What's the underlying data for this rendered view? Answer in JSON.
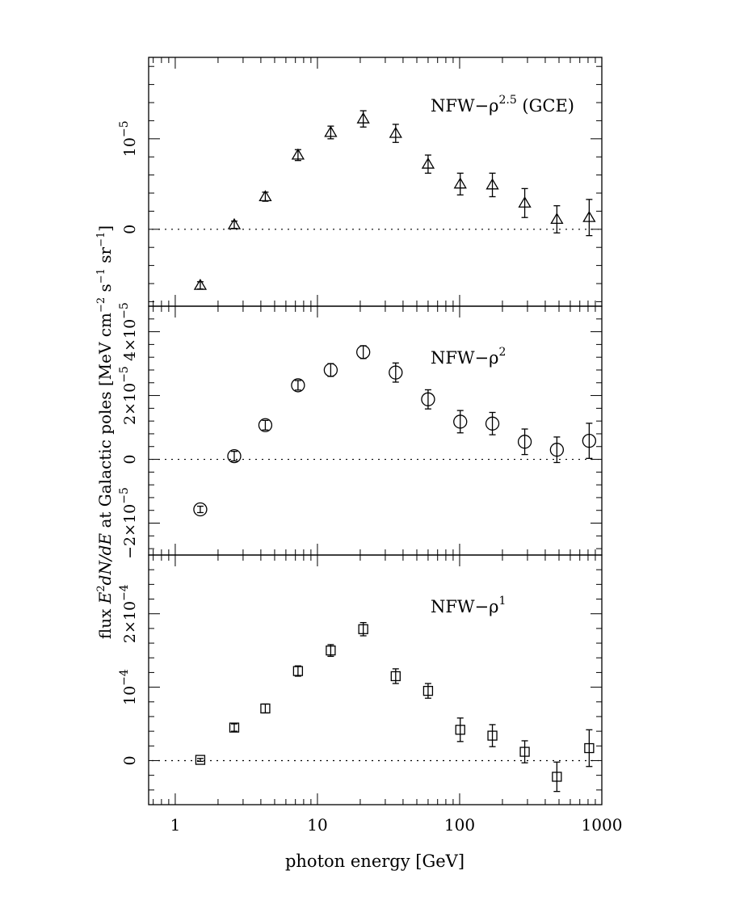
{
  "chart_data": [
    {
      "type": "scatter",
      "panel": "top",
      "label_main": "NFW−ρ",
      "label_exp": "2.5",
      "label_suffix": " (GCE)",
      "marker": "triangle",
      "x_scale": "log",
      "xlim": [
        0.65,
        1000
      ],
      "ylim": [
        -8.5e-06,
        1.9e-05
      ],
      "yticks": [
        {
          "value": 0,
          "label": "0",
          "exp": ""
        },
        {
          "value": 1e-05,
          "label": "10",
          "exp": "−5"
        }
      ],
      "points": [
        {
          "x": 1.5,
          "y": -6.2e-06,
          "err": 4e-07
        },
        {
          "x": 2.6,
          "y": 5e-07,
          "err": 4e-07
        },
        {
          "x": 4.3,
          "y": 3.6e-06,
          "err": 5e-07
        },
        {
          "x": 7.3,
          "y": 8.2e-06,
          "err": 6e-07
        },
        {
          "x": 12.4,
          "y": 1.07e-05,
          "err": 7e-07
        },
        {
          "x": 21,
          "y": 1.22e-05,
          "err": 9e-07
        },
        {
          "x": 35.5,
          "y": 1.06e-05,
          "err": 1e-06
        },
        {
          "x": 60,
          "y": 7.2e-06,
          "err": 1e-06
        },
        {
          "x": 101,
          "y": 5e-06,
          "err": 1.2e-06
        },
        {
          "x": 170,
          "y": 4.9e-06,
          "err": 1.3e-06
        },
        {
          "x": 287,
          "y": 2.9e-06,
          "err": 1.6e-06
        },
        {
          "x": 483,
          "y": 1.1e-06,
          "err": 1.5e-06
        },
        {
          "x": 815,
          "y": 1.3e-06,
          "err": 2e-06
        }
      ]
    },
    {
      "type": "scatter",
      "panel": "middle",
      "label_main": "NFW−ρ",
      "label_exp": "2",
      "label_suffix": "",
      "marker": "circle",
      "x_scale": "log",
      "xlim": [
        0.65,
        1000
      ],
      "ylim": [
        -3e-05,
        4.8e-05
      ],
      "yticks": [
        {
          "value": -2e-05,
          "label": "−2×10",
          "exp": "−5"
        },
        {
          "value": 0,
          "label": "0",
          "exp": ""
        },
        {
          "value": 2e-05,
          "label": "2×10",
          "exp": "−5"
        },
        {
          "value": 4e-05,
          "label": "4×10",
          "exp": "−5"
        }
      ],
      "points": [
        {
          "x": 1.5,
          "y": -1.57e-05,
          "err": 1e-06
        },
        {
          "x": 2.6,
          "y": 1e-06,
          "err": 1.5e-06
        },
        {
          "x": 4.3,
          "y": 1.07e-05,
          "err": 1.5e-06
        },
        {
          "x": 7.3,
          "y": 2.32e-05,
          "err": 1.5e-06
        },
        {
          "x": 12.4,
          "y": 2.8e-05,
          "err": 2e-06
        },
        {
          "x": 21,
          "y": 3.36e-05,
          "err": 2e-06
        },
        {
          "x": 35.5,
          "y": 2.72e-05,
          "err": 3e-06
        },
        {
          "x": 60,
          "y": 1.88e-05,
          "err": 3e-06
        },
        {
          "x": 101,
          "y": 1.18e-05,
          "err": 3.5e-06
        },
        {
          "x": 170,
          "y": 1.12e-05,
          "err": 3.5e-06
        },
        {
          "x": 287,
          "y": 5.5e-06,
          "err": 4e-06
        },
        {
          "x": 483,
          "y": 3e-06,
          "err": 4e-06
        },
        {
          "x": 815,
          "y": 5.8e-06,
          "err": 5.5e-06
        }
      ]
    },
    {
      "type": "scatter",
      "panel": "bottom",
      "label_main": "NFW−ρ",
      "label_exp": "1",
      "label_suffix": "",
      "marker": "square",
      "x_scale": "log",
      "xlim": [
        0.65,
        1000
      ],
      "ylim": [
        -6e-05,
        0.00028
      ],
      "yticks": [
        {
          "value": 0,
          "label": "0",
          "exp": ""
        },
        {
          "value": 0.0001,
          "label": "10",
          "exp": "−4"
        },
        {
          "value": 0.0002,
          "label": "2×10",
          "exp": "−4"
        }
      ],
      "points": [
        {
          "x": 1.5,
          "y": 1e-06,
          "err": 2e-06
        },
        {
          "x": 2.6,
          "y": 4.5e-05,
          "err": 5e-06
        },
        {
          "x": 4.3,
          "y": 7.1e-05,
          "err": 6e-06
        },
        {
          "x": 7.3,
          "y": 0.000122,
          "err": 7e-06
        },
        {
          "x": 12.4,
          "y": 0.00015,
          "err": 8e-06
        },
        {
          "x": 21,
          "y": 0.000179,
          "err": 9e-06
        },
        {
          "x": 35.5,
          "y": 0.000115,
          "err": 1e-05
        },
        {
          "x": 60,
          "y": 9.5e-05,
          "err": 1e-05
        },
        {
          "x": 101,
          "y": 4.2e-05,
          "err": 1.6e-05
        },
        {
          "x": 170,
          "y": 3.4e-05,
          "err": 1.5e-05
        },
        {
          "x": 287,
          "y": 1.2e-05,
          "err": 1.5e-05
        },
        {
          "x": 483,
          "y": -2.2e-05,
          "err": 2e-05
        },
        {
          "x": 815,
          "y": 1.7e-05,
          "err": 2.5e-05
        }
      ]
    }
  ],
  "xaxis": {
    "label": "photon energy [GeV]",
    "ticks": [
      {
        "value": 1,
        "label": "1"
      },
      {
        "value": 10,
        "label": "10"
      },
      {
        "value": 100,
        "label": "100"
      },
      {
        "value": 1000,
        "label": "1000"
      }
    ]
  },
  "yaxis": {
    "label_pre": "flux ",
    "label_e": "E",
    "label_sq": "2",
    "label_dnde": "dN/dE",
    "label_mid": " at Galactic poles [MeV cm",
    "label_exp1": "−2",
    "label_s": " s",
    "label_exp2": "−1",
    "label_sr": " sr",
    "label_exp3": "−1",
    "label_close": "]"
  }
}
